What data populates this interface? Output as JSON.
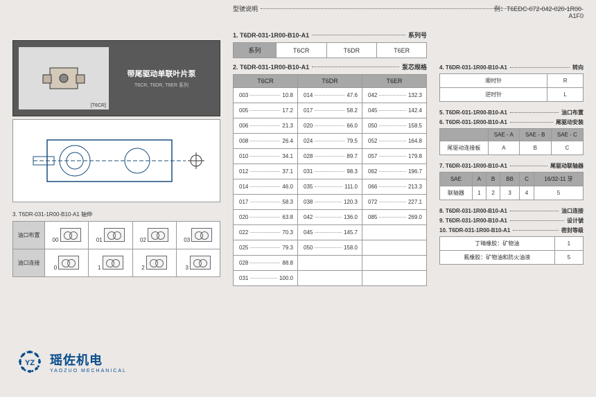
{
  "header": {
    "label": "型號说明",
    "example_prefix": "例：",
    "example": "T6EDC-072-042-020-1R00-",
    "example_line2": "A1F0"
  },
  "pump_card": {
    "title": "带尾驱动单联叶片泵",
    "subtitle": "T6CR, T6DR, T6ER 系列"
  },
  "section1": {
    "num": "1.",
    "code": "T6DR-031-1R00-B10-A1",
    "label": "系列号",
    "table": {
      "header": "系列",
      "cols": [
        "T6CR",
        "T6DR",
        "T6ER"
      ]
    }
  },
  "section2": {
    "num": "2.",
    "code": "T6DR-031-1R00-B10-A1",
    "label": "泵芯规格",
    "headers": [
      "T6CR",
      "T6DR",
      "T6ER"
    ],
    "rows": [
      [
        {
          "c": "003",
          "v": "10.8"
        },
        {
          "c": "014",
          "v": "47.6"
        },
        {
          "c": "042",
          "v": "132.3"
        }
      ],
      [
        {
          "c": "005",
          "v": "17.2"
        },
        {
          "c": "017",
          "v": "58.2"
        },
        {
          "c": "045",
          "v": "142.4"
        }
      ],
      [
        {
          "c": "006",
          "v": "21.3"
        },
        {
          "c": "020",
          "v": "66.0"
        },
        {
          "c": "050",
          "v": "158.5"
        }
      ],
      [
        {
          "c": "008",
          "v": "26.4"
        },
        {
          "c": "024",
          "v": "79.5"
        },
        {
          "c": "052",
          "v": "164.8"
        }
      ],
      [
        {
          "c": "010",
          "v": "34.1"
        },
        {
          "c": "028",
          "v": "89.7"
        },
        {
          "c": "057",
          "v": "179.8"
        }
      ],
      [
        {
          "c": "012",
          "v": "37.1"
        },
        {
          "c": "031",
          "v": "98.3"
        },
        {
          "c": "062",
          "v": "196.7"
        }
      ],
      [
        {
          "c": "014",
          "v": "46.0"
        },
        {
          "c": "035",
          "v": "111.0"
        },
        {
          "c": "066",
          "v": "213.3"
        }
      ],
      [
        {
          "c": "017",
          "v": "58.3"
        },
        {
          "c": "038",
          "v": "120.3"
        },
        {
          "c": "072",
          "v": "227.1"
        }
      ],
      [
        {
          "c": "020",
          "v": "63.8"
        },
        {
          "c": "042",
          "v": "136.0"
        },
        {
          "c": "085",
          "v": "269.0"
        }
      ],
      [
        {
          "c": "022",
          "v": "70.3"
        },
        {
          "c": "045",
          "v": "145.7"
        },
        null
      ],
      [
        {
          "c": "025",
          "v": "79.3"
        },
        {
          "c": "050",
          "v": "158.0"
        },
        null
      ],
      [
        {
          "c": "028",
          "v": "88.8"
        },
        null,
        null
      ],
      [
        {
          "c": "031",
          "v": "100.0"
        },
        null,
        null
      ]
    ]
  },
  "section3": {
    "title": "3. T6DR-031-1R00-B10-A1 轴伸",
    "row1_label": "油口布置",
    "row1_codes": [
      "00",
      "01",
      "02",
      "03"
    ],
    "row2_label": "油口连接",
    "row2_codes": [
      "0",
      "1",
      "2",
      "3"
    ]
  },
  "section4": {
    "num": "4.",
    "code": "T6DR-031-1R00-B10-A1",
    "label": "转向",
    "rows": [
      [
        "顺时针",
        "R"
      ],
      [
        "逆时针",
        "L"
      ]
    ]
  },
  "section5": {
    "num": "5.",
    "code": "T6DR-031-1R00-B10-A1",
    "label": "油口布置"
  },
  "section6": {
    "num": "6.",
    "code": "T6DR-031-1R00-B10-A1",
    "label": "尾驱动安装",
    "headers": [
      "",
      "SAE - A",
      "SAE - B",
      "SAE - C"
    ],
    "row": [
      "尾驱动连接板",
      "A",
      "B",
      "C"
    ]
  },
  "section7": {
    "num": "7.",
    "code": "T6DR-031-1R00-B10-A1",
    "label": "尾驱动联轴器",
    "headers": [
      "SAE",
      "A",
      "B",
      "BB",
      "C",
      "16/32-11 牙"
    ],
    "row": [
      "联轴器",
      "1",
      "2",
      "3",
      "4",
      "5"
    ]
  },
  "section8": {
    "num": "8.",
    "code": "T6DR-031-1R00-B10-A1",
    "label": "油口连接"
  },
  "section9": {
    "num": "9.",
    "code": "T6DR-031-1R00-B10-A1",
    "label": "设计號"
  },
  "section10": {
    "num": "10.",
    "code": "T6DR-031-1R00-B10-A1",
    "label": "密封等级",
    "rows": [
      [
        "丁晴橡胶：矿物油",
        "1"
      ],
      [
        "氟橡胶：矿物油和防火油液",
        "5"
      ]
    ]
  },
  "logo": {
    "name": "瑶佐机电",
    "sub": "YAOZUO MECHANICAL"
  },
  "colors": {
    "card_bg": "#595959",
    "th_bg": "#a8a8a8",
    "page_bg": "#ebe8e6",
    "logo": "#0a4d8c"
  }
}
